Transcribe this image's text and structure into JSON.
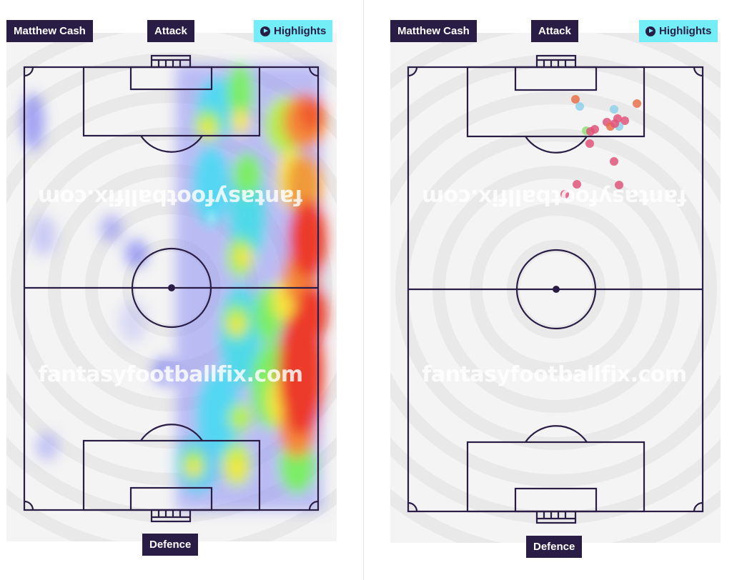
{
  "player_name": "Matthew Cash",
  "attack_label": "Attack",
  "defence_label": "Defence",
  "highlights_label": "Highlights",
  "watermark": "fantasyfootballfix.com",
  "colors": {
    "tag_bg": "#2a1d45",
    "highlight_bg": "#73eef7",
    "pitch_line": "#2a1d45",
    "ring_dark": "#e9e9e9",
    "ring_light": "#f4f4f4"
  },
  "heatmap": {
    "description_icon": "heatmap",
    "levels": [
      "blue",
      "cyan",
      "green",
      "yellow",
      "orange",
      "red"
    ]
  },
  "events": [
    {
      "color": "#e8704a"
    },
    {
      "color": "#8ed1ea"
    },
    {
      "color": "#e8704a"
    },
    {
      "color": "#8ed1ea"
    },
    {
      "color": "#e0557a"
    },
    {
      "color": "#e0557a"
    },
    {
      "color": "#e0557a"
    },
    {
      "color": "#e8704a"
    },
    {
      "color": "#8ed1ea"
    },
    {
      "color": "#90e07a"
    },
    {
      "color": "#e0557a"
    },
    {
      "color": "#e0557a"
    },
    {
      "color": "#e0557a"
    },
    {
      "color": "#e0557a"
    },
    {
      "color": "#e0557a"
    },
    {
      "color": "#e0557a"
    },
    {
      "color": "#e0557a"
    },
    {
      "color": "#e0557a"
    }
  ]
}
